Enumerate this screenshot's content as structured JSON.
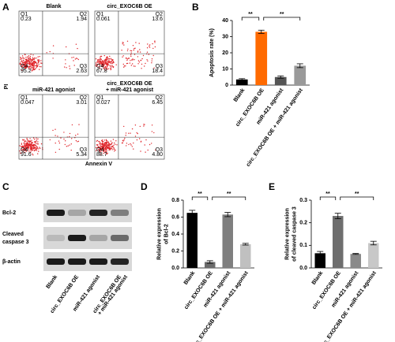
{
  "panels": [
    "A",
    "B",
    "C",
    "D",
    "E"
  ],
  "flow": {
    "y_label": "PI",
    "x_label": "Annexin V",
    "plots": [
      {
        "title": [
          "Blank"
        ],
        "quadrants": [
          {
            "name": "Q1",
            "value": "0.23"
          },
          {
            "name": "Q2",
            "value": "1.94"
          },
          {
            "name": "Q3",
            "value": "2.63"
          },
          {
            "name": "Q4",
            "value": "95.2"
          }
        ]
      },
      {
        "title": [
          "circ_EXOC6B OE"
        ],
        "quadrants": [
          {
            "name": "Q1",
            "value": "0.061"
          },
          {
            "name": "Q2",
            "value": "13.6"
          },
          {
            "name": "Q3",
            "value": "18.4"
          },
          {
            "name": "Q4",
            "value": "67.8"
          }
        ]
      },
      {
        "title": [
          "miR-421 agonist"
        ],
        "quadrants": [
          {
            "name": "Q1",
            "value": "0.047"
          },
          {
            "name": "Q2",
            "value": "3.01"
          },
          {
            "name": "Q3",
            "value": "5.34"
          },
          {
            "name": "Q4",
            "value": "91.6"
          }
        ]
      },
      {
        "title": [
          "circ_EXOC6B OE",
          "+ miR-421 agonist"
        ],
        "quadrants": [
          {
            "name": "Q1",
            "value": "0.027"
          },
          {
            "name": "Q2",
            "value": "6.45"
          },
          {
            "name": "Q3",
            "value": "4.80"
          },
          {
            "name": "Q4",
            "value": "88.7"
          }
        ]
      }
    ]
  },
  "blot": {
    "rows": [
      [
        "Bcl-2"
      ],
      [
        "Cleaved",
        "caspase 3"
      ],
      [
        "β-actin"
      ]
    ],
    "lanes": [
      [
        "Blank"
      ],
      [
        "circ_EXOC6B OE"
      ],
      [
        "miR-421 agonist"
      ],
      [
        "circ_EXOC6B OE",
        "+ miR-421 agonist"
      ]
    ]
  },
  "chart_data": [
    {
      "type": "bar",
      "y_label": [
        "Apoptosis rate (%)"
      ],
      "categories": [
        "Blank",
        "circ_EXOC6B OE",
        "miR-421 agonist",
        "circ_EXOC6B OE + miR-421 agonist"
      ],
      "values": [
        3.5,
        33,
        5,
        12
      ],
      "errors": [
        0.5,
        1,
        0.7,
        1.2
      ],
      "colors": [
        "#000000",
        "#ff6a00",
        "#555555",
        "#9a9a9a"
      ],
      "ylim": [
        0,
        40
      ],
      "yticks": [
        0,
        10,
        20,
        30,
        40
      ],
      "annotations": [
        "**",
        "**"
      ]
    },
    {
      "type": "bar",
      "y_label": [
        "Relative expression",
        "of Bcl-2"
      ],
      "categories": [
        "Blank",
        "circ_EXOC6B OE",
        "miR-421 agonist",
        "circ_EXOC6B OE + miR-421 agonist"
      ],
      "values": [
        0.65,
        0.07,
        0.63,
        0.28
      ],
      "errors": [
        0.03,
        0.015,
        0.025,
        0.01
      ],
      "colors": [
        "#000000",
        "#6b6b6b",
        "#7f7f7f",
        "#c0c0c0"
      ],
      "ylim": [
        0,
        0.8
      ],
      "yticks": [
        {
          "value": 0,
          "label": "0.0"
        },
        0.2,
        0.4,
        0.6,
        0.8
      ],
      "annotations": [
        "**",
        "**"
      ]
    },
    {
      "type": "bar",
      "y_label": [
        "Relative expression",
        "of cleaved caspase 3"
      ],
      "categories": [
        "Blank",
        "circ_EXOC6B OE",
        "miR-421 agonist",
        "circ_EXOC6B OE + miR-421 agonist"
      ],
      "values": [
        0.065,
        0.23,
        0.062,
        0.11
      ],
      "errors": [
        0.008,
        0.012,
        0.002,
        0.008
      ],
      "colors": [
        "#000000",
        "#6e6e6e",
        "#8a8a8a",
        "#c8c8c8"
      ],
      "ylim": [
        0,
        0.3
      ],
      "yticks": [
        {
          "value": 0,
          "label": "0.0"
        },
        0.1,
        0.2,
        0.3
      ],
      "annotations": [
        "**",
        "**"
      ]
    }
  ]
}
